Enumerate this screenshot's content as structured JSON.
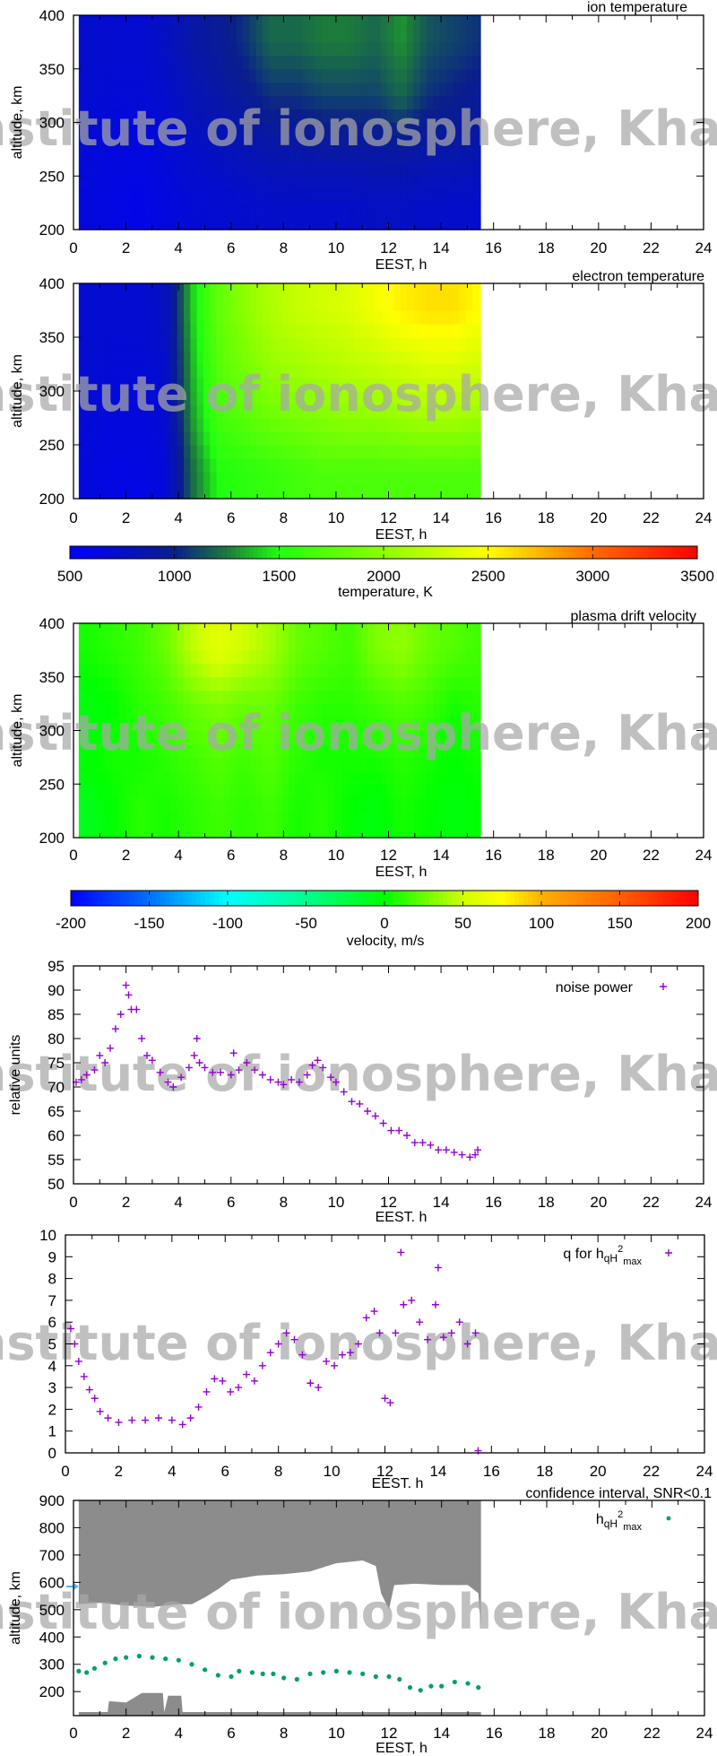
{
  "watermark": "Institute of ionosphere, Kharkiv",
  "chart_data": [
    {
      "id": "ion",
      "type": "heatmap",
      "title": "ion temperature",
      "xlabel": "EEST, h",
      "ylabel": "altitude, km",
      "xlim": [
        0,
        24
      ],
      "ylim": [
        200,
        400
      ],
      "xticks": [
        "0",
        "2",
        "4",
        "6",
        "8",
        "10",
        "12",
        "14",
        "16",
        "18",
        "20",
        "22",
        "24"
      ],
      "yticks": [
        "200",
        "250",
        "300",
        "350",
        "400"
      ],
      "colorscale": "temperature",
      "x": [
        0.5,
        1.5,
        2.5,
        3.5,
        4.5,
        5.5,
        6.5,
        7.5,
        8.5,
        9.5,
        10.5,
        11.5,
        12.5,
        13.5,
        14.5,
        15.5
      ],
      "y": [
        200,
        250,
        300,
        350,
        400
      ],
      "x_range": [
        0.2,
        15.5
      ],
      "z": [
        [
          650,
          680,
          700,
          720
        ],
        [
          620,
          650,
          680,
          700
        ],
        [
          600,
          640,
          680,
          700
        ],
        [
          640,
          680,
          720,
          760
        ],
        [
          680,
          740,
          820,
          880
        ],
        [
          700,
          780,
          880,
          950
        ],
        [
          720,
          820,
          950,
          1050
        ],
        [
          740,
          860,
          1050,
          1200
        ],
        [
          740,
          880,
          1050,
          1200
        ],
        [
          740,
          900,
          1100,
          1250
        ],
        [
          740,
          900,
          1100,
          1250
        ],
        [
          760,
          900,
          1100,
          1200
        ],
        [
          760,
          920,
          1200,
          1300
        ],
        [
          740,
          880,
          1050,
          1150
        ],
        [
          740,
          880,
          1000,
          1100
        ],
        [
          720,
          850,
          950,
          1050
        ]
      ],
      "z_note_rows": "each inner array = altitudes 200-250,250-300,300-350,350-400"
    },
    {
      "id": "electron",
      "type": "heatmap",
      "title": "electron temperature",
      "xlabel": "EEST, h",
      "ylabel": "altitude, km",
      "xlim": [
        0,
        24
      ],
      "ylim": [
        200,
        400
      ],
      "xticks": [
        "0",
        "2",
        "4",
        "6",
        "8",
        "10",
        "12",
        "14",
        "16",
        "18",
        "20",
        "22",
        "24"
      ],
      "yticks": [
        "200",
        "250",
        "300",
        "350",
        "400"
      ],
      "colorscale": "temperature",
      "x": [
        0.5,
        1.5,
        2.5,
        3.5,
        4.5,
        5.5,
        6.5,
        7.5,
        8.5,
        9.5,
        10.5,
        11.5,
        12.5,
        13.5,
        14.5,
        15.5
      ],
      "x_range": [
        0.2,
        15.5
      ],
      "z": [
        [
          650,
          680,
          700,
          700
        ],
        [
          620,
          650,
          680,
          700
        ],
        [
          620,
          650,
          680,
          700
        ],
        [
          660,
          700,
          720,
          760
        ],
        [
          1200,
          1300,
          1350,
          1400
        ],
        [
          1500,
          1650,
          1750,
          1800
        ],
        [
          1550,
          1750,
          1900,
          2000
        ],
        [
          1600,
          1850,
          2050,
          2150
        ],
        [
          1650,
          1900,
          2100,
          2250
        ],
        [
          1700,
          1950,
          2150,
          2300
        ],
        [
          1700,
          2000,
          2200,
          2350
        ],
        [
          1700,
          2000,
          2250,
          2450
        ],
        [
          1700,
          2050,
          2300,
          2550
        ],
        [
          1700,
          2100,
          2350,
          2600
        ],
        [
          1700,
          2100,
          2350,
          2600
        ],
        [
          1700,
          2050,
          2300,
          2500
        ]
      ]
    },
    {
      "id": "temperature_colorbar",
      "type": "colorbar",
      "label": "temperature, K",
      "range": [
        500,
        3500
      ],
      "ticks": [
        "500",
        "1000",
        "1500",
        "2000",
        "2500",
        "3000",
        "3500"
      ],
      "stops": [
        [
          500,
          "#0000ff"
        ],
        [
          1000,
          "#0a1e8c"
        ],
        [
          1250,
          "#1c7a3c"
        ],
        [
          1500,
          "#20ff10"
        ],
        [
          2000,
          "#8cff00"
        ],
        [
          2500,
          "#ffff00"
        ],
        [
          2750,
          "#ffb400"
        ],
        [
          3000,
          "#ff6a00"
        ],
        [
          3500,
          "#ff0000"
        ]
      ]
    },
    {
      "id": "velocity",
      "type": "heatmap",
      "title": "plasma drift velocity",
      "xlabel": "EEST, h",
      "ylabel": "altitude, km",
      "xlim": [
        0,
        24
      ],
      "ylim": [
        200,
        400
      ],
      "xticks": [
        "0",
        "2",
        "4",
        "6",
        "8",
        "10",
        "12",
        "14",
        "16",
        "18",
        "20",
        "22",
        "24"
      ],
      "yticks": [
        "200",
        "250",
        "300",
        "350",
        "400"
      ],
      "colorscale": "velocity",
      "x": [
        0.5,
        1.5,
        2.5,
        3.5,
        4.5,
        5.5,
        6.5,
        7.5,
        8.5,
        9.5,
        10.5,
        11.5,
        12.5,
        13.5,
        14.5,
        15.5
      ],
      "x_range": [
        0.2,
        15.5
      ],
      "z": [
        [
          -10,
          0,
          -5,
          5
        ],
        [
          0,
          5,
          0,
          10
        ],
        [
          10,
          5,
          10,
          15
        ],
        [
          5,
          10,
          15,
          25
        ],
        [
          10,
          15,
          25,
          45
        ],
        [
          15,
          20,
          30,
          60
        ],
        [
          10,
          15,
          25,
          50
        ],
        [
          15,
          20,
          25,
          40
        ],
        [
          5,
          10,
          15,
          25
        ],
        [
          10,
          5,
          10,
          20
        ],
        [
          0,
          5,
          10,
          15
        ],
        [
          -5,
          5,
          15,
          30
        ],
        [
          5,
          10,
          20,
          35
        ],
        [
          0,
          5,
          15,
          25
        ],
        [
          -5,
          0,
          5,
          20
        ],
        [
          0,
          5,
          10,
          15
        ]
      ]
    },
    {
      "id": "velocity_colorbar",
      "type": "colorbar",
      "label": "velocity, m/s",
      "range": [
        -200,
        200
      ],
      "ticks": [
        "-200",
        "-150",
        "-100",
        "-50",
        "0",
        "50",
        "100",
        "150",
        "200"
      ],
      "stops": [
        [
          -200,
          "#0000ff"
        ],
        [
          -150,
          "#0070ff"
        ],
        [
          -100,
          "#00ffff"
        ],
        [
          -50,
          "#00ff90"
        ],
        [
          0,
          "#00ff00"
        ],
        [
          50,
          "#d0ff00"
        ],
        [
          75,
          "#ffff00"
        ],
        [
          100,
          "#ffb000"
        ],
        [
          150,
          "#ff6000"
        ],
        [
          200,
          "#ff0000"
        ]
      ]
    },
    {
      "id": "noise",
      "type": "scatter",
      "xlabel": "EEST. h",
      "ylabel": "relative units",
      "xlim": [
        0,
        24
      ],
      "ylim": [
        50,
        95
      ],
      "xticks": [
        "0",
        "2",
        "4",
        "6",
        "8",
        "10",
        "12",
        "14",
        "16",
        "18",
        "20",
        "22",
        "24"
      ],
      "yticks": [
        "50",
        "55",
        "60",
        "65",
        "70",
        "75",
        "80",
        "85",
        "90",
        "95"
      ],
      "legend": "top-right",
      "series": [
        {
          "name": "noise power",
          "color": "#9400d3",
          "x": [
            0.1,
            0.3,
            0.5,
            0.8,
            1.0,
            1.2,
            1.4,
            1.6,
            1.8,
            2.0,
            2.1,
            2.2,
            2.4,
            2.6,
            2.8,
            3.0,
            3.3,
            3.6,
            3.8,
            4.1,
            4.4,
            4.6,
            4.7,
            4.8,
            5.0,
            5.3,
            5.6,
            6.0,
            6.1,
            6.3,
            6.6,
            6.9,
            7.2,
            7.5,
            7.8,
            8.0,
            8.3,
            8.6,
            8.9,
            9.1,
            9.3,
            9.5,
            9.8,
            10.0,
            10.3,
            10.6,
            10.9,
            11.2,
            11.5,
            11.8,
            12.1,
            12.4,
            12.7,
            13.0,
            13.3,
            13.6,
            13.9,
            14.2,
            14.5,
            14.8,
            15.1,
            15.3,
            15.4
          ],
          "y": [
            71,
            71.5,
            72.5,
            73.5,
            76.5,
            75,
            78,
            82,
            85,
            91,
            89,
            86,
            86,
            80,
            76.5,
            75.5,
            73,
            71,
            70,
            72,
            74,
            76.5,
            80,
            75,
            74,
            73,
            73,
            72.5,
            77,
            73.5,
            75,
            73.5,
            72.5,
            71.5,
            71,
            70.5,
            71.5,
            71,
            72.5,
            74.5,
            75.5,
            74,
            72,
            71,
            69,
            67,
            66.5,
            65,
            64,
            62.5,
            61,
            61,
            60,
            58.5,
            58.5,
            58,
            57,
            57,
            56.5,
            56,
            55.5,
            56,
            57
          ]
        }
      ]
    },
    {
      "id": "q",
      "type": "scatter",
      "xlabel": "EEST. h",
      "xlim": [
        0,
        24
      ],
      "ylim": [
        0,
        10
      ],
      "xticks": [
        "0",
        "2",
        "4",
        "6",
        "8",
        "10",
        "12",
        "14",
        "16",
        "18",
        "20",
        "22",
        "24"
      ],
      "yticks": [
        "0",
        "1",
        "2",
        "3",
        "4",
        "5",
        "6",
        "7",
        "8",
        "9",
        "10"
      ],
      "legend": "top-right",
      "series": [
        {
          "name": "q for h",
          "name_sub": "qH",
          "name_sup": "2",
          "name_sub2": "max",
          "color": "#9400d3",
          "x": [
            0.2,
            0.35,
            0.5,
            0.7,
            0.9,
            1.1,
            1.3,
            1.6,
            2.0,
            2.5,
            3.0,
            3.5,
            4.0,
            4.4,
            4.7,
            5.0,
            5.3,
            5.6,
            5.9,
            6.2,
            6.5,
            6.8,
            7.1,
            7.4,
            7.7,
            8.0,
            8.3,
            8.6,
            8.9,
            9.2,
            9.5,
            9.8,
            10.1,
            10.4,
            10.7,
            11.0,
            11.3,
            11.6,
            11.8,
            12.0,
            12.2,
            12.4,
            12.6,
            12.7,
            13.0,
            13.3,
            13.6,
            13.9,
            14.0,
            14.2,
            14.5,
            14.8,
            15.1,
            15.4,
            15.5
          ],
          "y": [
            5.7,
            5.0,
            4.2,
            3.5,
            2.9,
            2.5,
            1.9,
            1.6,
            1.4,
            1.5,
            1.5,
            1.6,
            1.5,
            1.3,
            1.6,
            2.1,
            2.8,
            3.4,
            3.3,
            2.8,
            3.0,
            3.6,
            3.3,
            4.0,
            4.6,
            5.0,
            5.5,
            5.2,
            4.5,
            3.2,
            3.0,
            4.2,
            4.0,
            4.5,
            4.6,
            5.0,
            6.2,
            6.5,
            5.5,
            2.5,
            2.3,
            5.5,
            9.2,
            6.8,
            7.0,
            6.0,
            5.2,
            6.8,
            8.5,
            5.3,
            5.5,
            6.0,
            5.0,
            5.5,
            0.1
          ]
        }
      ]
    },
    {
      "id": "hmax",
      "type": "scatter",
      "title": "confidence interval, SNR<0.1",
      "xlabel": "EEST, h",
      "ylabel": "altitude, km",
      "xlim": [
        0,
        24
      ],
      "ylim": [
        112,
        900
      ],
      "xticks": [
        "0",
        "2",
        "4",
        "6",
        "8",
        "10",
        "12",
        "14",
        "16",
        "18",
        "20",
        "22",
        "24"
      ],
      "yticks": [
        "200",
        "300",
        "400",
        "500",
        "600",
        "700",
        "800",
        "900"
      ],
      "legend": "top-right",
      "confidence_interval": {
        "color": "#8c8c8c",
        "upper_band_lower_edge": {
          "x": [
            0.2,
            1,
            2,
            3,
            4,
            4.5,
            5,
            5.5,
            6,
            7,
            8,
            9,
            10,
            11,
            11.5,
            11.7,
            12.0,
            12.2,
            13,
            14,
            15,
            15.4,
            15.5
          ],
          "y": [
            520,
            525,
            515,
            510,
            520,
            520,
            545,
            575,
            610,
            625,
            630,
            640,
            670,
            680,
            660,
            560,
            500,
            590,
            595,
            590,
            590,
            560,
            430
          ]
        },
        "lower_band_upper_edge": {
          "x": [
            0.2,
            1.3,
            1.35,
            2,
            2.6,
            3.4,
            3.45,
            3.6,
            4.1,
            4.15,
            15.5
          ],
          "y": [
            125,
            125,
            165,
            160,
            195,
            195,
            125,
            185,
            185,
            125,
            125
          ]
        }
      },
      "series": [
        {
          "name": "h",
          "name_sub": "qH",
          "name_sup": "2",
          "name_sub2": "max",
          "color": "#009e73",
          "x": [
            0.2,
            0.5,
            0.8,
            1.2,
            1.6,
            2.0,
            2.5,
            3.0,
            3.5,
            4.0,
            4.5,
            5.0,
            5.5,
            6.0,
            6.3,
            6.8,
            7.2,
            7.6,
            8.0,
            8.5,
            9.0,
            9.5,
            10.0,
            10.5,
            11.0,
            11.5,
            12.0,
            12.4,
            12.8,
            13.2,
            13.6,
            14.0,
            14.5,
            15.0,
            15.4
          ],
          "y": [
            275,
            270,
            285,
            305,
            320,
            325,
            330,
            325,
            320,
            315,
            300,
            280,
            260,
            255,
            275,
            270,
            265,
            265,
            250,
            245,
            265,
            270,
            275,
            270,
            265,
            255,
            255,
            245,
            215,
            205,
            220,
            220,
            235,
            230,
            215
          ]
        }
      ]
    }
  ]
}
